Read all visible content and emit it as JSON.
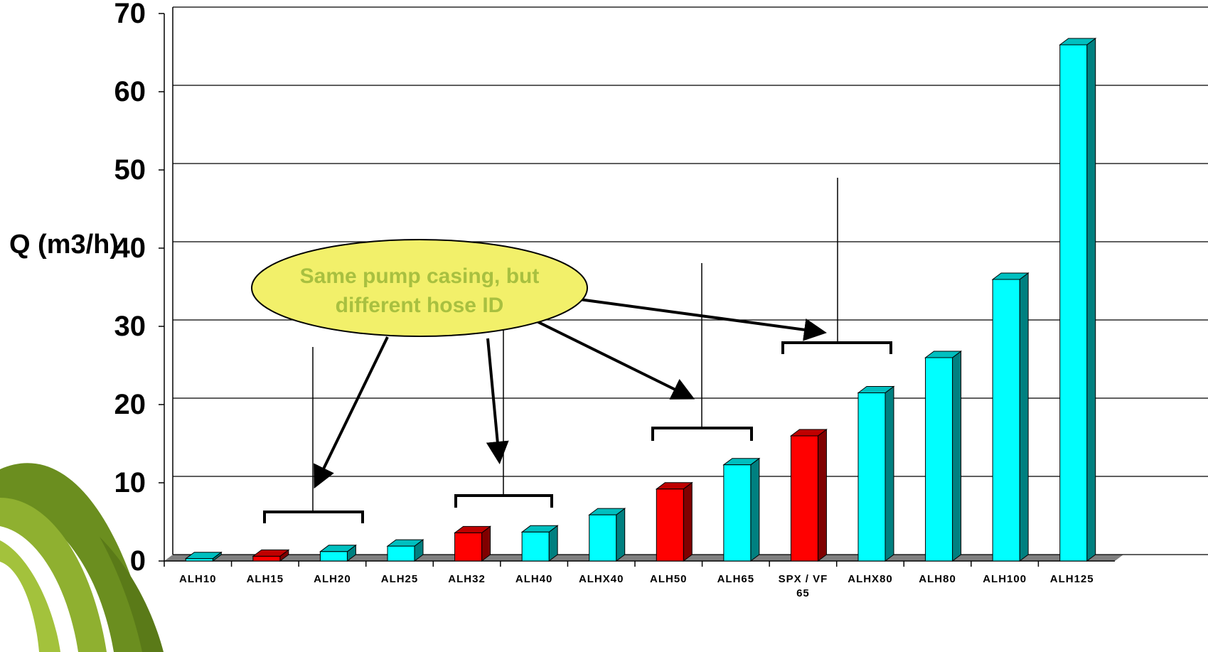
{
  "chart_data": {
    "type": "bar3d",
    "y_label": "Q (m3/h)",
    "categories": [
      "ALH10",
      "ALH15",
      "ALH20",
      "ALH25",
      "ALH32",
      "ALH40",
      "ALHX40",
      "ALH50",
      "ALH65",
      "SPX / VF 65",
      "ALHX80",
      "ALH80",
      "ALH100",
      "ALH125"
    ],
    "values": [
      0.3,
      0.6,
      1.2,
      1.9,
      3.6,
      3.7,
      5.9,
      9.2,
      12.3,
      16,
      21.5,
      26,
      36,
      66
    ],
    "colors": [
      "#00ffff",
      "#ff0000",
      "#00ffff",
      "#00ffff",
      "#ff0000",
      "#00ffff",
      "#00ffff",
      "#ff0000",
      "#00ffff",
      "#ff0000",
      "#00ffff",
      "#00ffff",
      "#00ffff",
      "#00ffff"
    ],
    "ylim": [
      0,
      70
    ],
    "yticks": [
      0,
      10,
      20,
      30,
      40,
      50,
      60,
      70
    ],
    "grid": true,
    "annotation": "Same pump casing, but different hose ID"
  }
}
